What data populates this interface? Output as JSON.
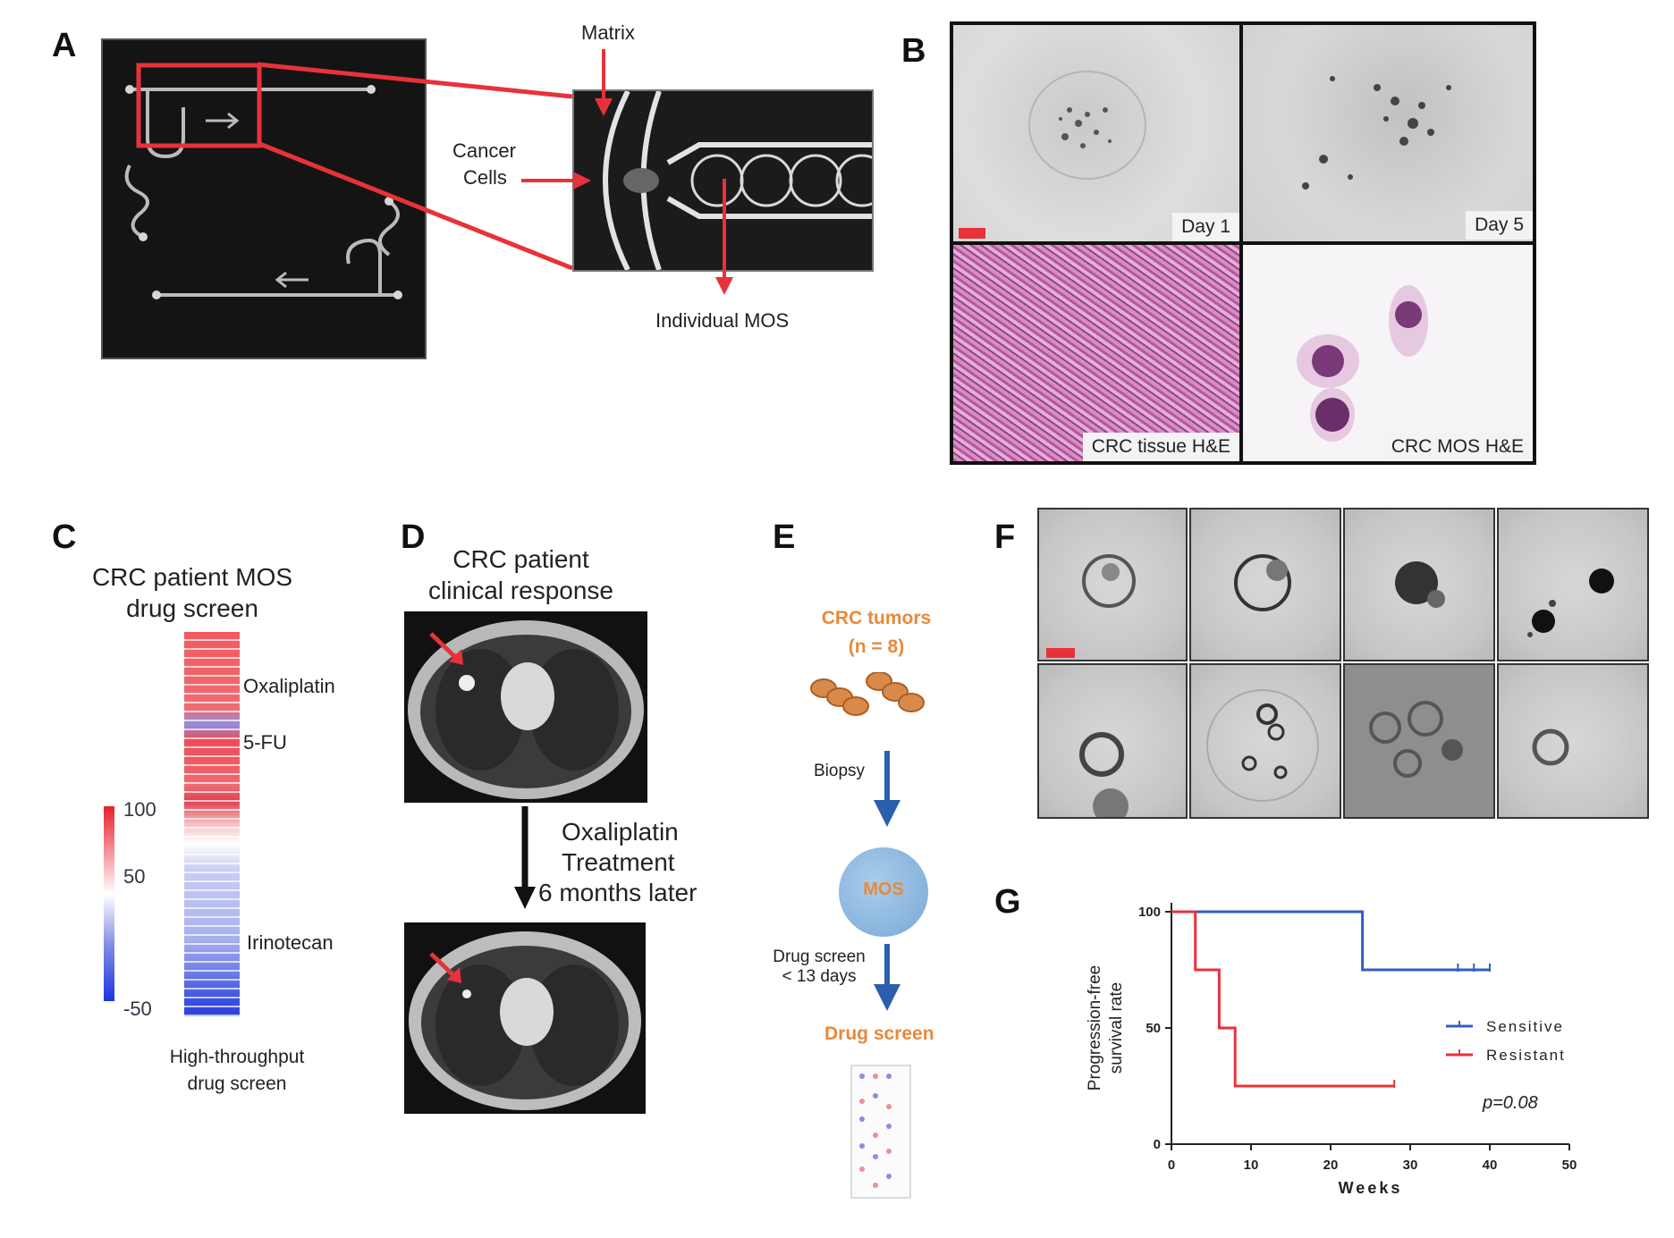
{
  "panels": {
    "a": "A",
    "b": "B",
    "c": "C",
    "d": "D",
    "e": "E",
    "f": "F",
    "g": "G"
  },
  "panel_a": {
    "matrix": "Matrix",
    "cancer": "Cancer",
    "cells": "Cells",
    "mos": "Individual MOS"
  },
  "panel_b": {
    "day1": "Day 1",
    "day5": "Day 5",
    "tissue": "CRC tissue H&E",
    "mos": "CRC MOS H&E"
  },
  "panel_c": {
    "title1": "CRC patient MOS",
    "title2": "drug screen",
    "drug1": "Oxaliplatin",
    "drug2": "5-FU",
    "drug3": "Irinotecan",
    "scale_max": "100",
    "scale_mid": "50",
    "scale_min": "-50",
    "foot1": "High-throughput",
    "foot2": "drug screen"
  },
  "panel_d": {
    "title1": "CRC patient",
    "title2": "clinical response",
    "t1": "Oxaliplatin",
    "t2": "Treatment",
    "t3": "6 months later"
  },
  "panel_e": {
    "tumors": "CRC tumors",
    "n": "(n = 8)",
    "biopsy": "Biopsy",
    "mos": "MOS",
    "screen1": "Drug screen",
    "screen2": "< 13 days",
    "result": "Drug screen"
  },
  "colors": {
    "red": "#e8323a",
    "blue": "#2f5ec4",
    "orange": "#e8893a",
    "arrow_blue": "#2b5fae"
  },
  "chart_data": {
    "type": "line",
    "title": "",
    "xlabel": "Weeks",
    "ylabel": "Progression-free survival rate",
    "xlim": [
      0,
      50
    ],
    "ylim": [
      0,
      100
    ],
    "xticks": [
      "0",
      "10",
      "20",
      "30",
      "40",
      "50"
    ],
    "yticks": [
      "0",
      "50",
      "100"
    ],
    "series": [
      {
        "name": "Sensitive",
        "color": "#2f5ec4",
        "steps": [
          [
            0,
            100
          ],
          [
            24,
            100
          ],
          [
            24,
            75
          ],
          [
            40,
            75
          ]
        ],
        "censored": [
          [
            36,
            75
          ],
          [
            38,
            75
          ],
          [
            40,
            75
          ]
        ]
      },
      {
        "name": "Resistant",
        "color": "#e8323a",
        "steps": [
          [
            0,
            100
          ],
          [
            3,
            100
          ],
          [
            3,
            75
          ],
          [
            6,
            75
          ],
          [
            6,
            50
          ],
          [
            8,
            50
          ],
          [
            8,
            25
          ],
          [
            28,
            25
          ]
        ],
        "censored": [
          [
            28,
            25
          ]
        ]
      }
    ],
    "annotation": "p=0.08",
    "legend": "right"
  }
}
